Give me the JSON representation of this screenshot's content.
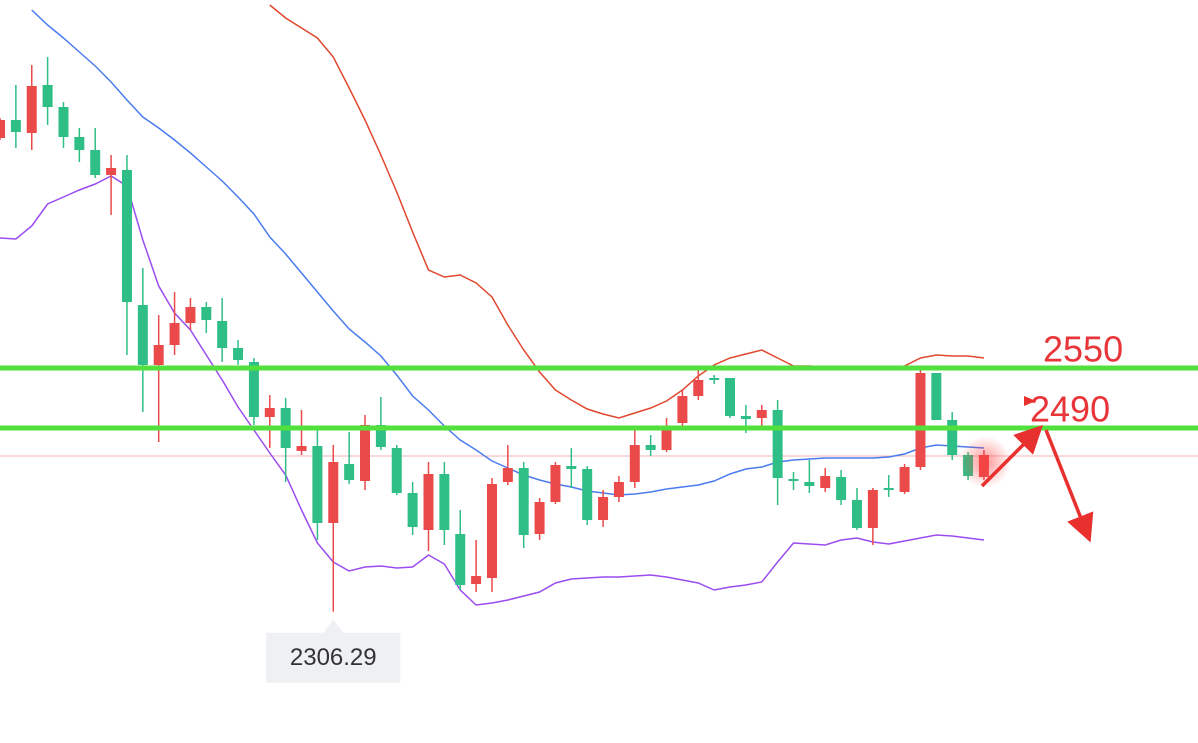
{
  "chart_data": {
    "type": "candlestick",
    "ylim": [
      2175,
      2918
    ],
    "up_color": "#eb4a4a",
    "down_color": "#2fbf86",
    "open": [
      2780,
      2798,
      2785,
      2833,
      2811,
      2781,
      2768,
      2743,
      2748,
      2613,
      2553,
      2573,
      2595,
      2611,
      2597,
      2570,
      2556,
      2501,
      2510,
      2467,
      2472,
      2395,
      2454,
      2437,
      2493,
      2470,
      2425,
      2388,
      2444,
      2384,
      2334,
      2340,
      2436,
      2450,
      2384,
      2416,
      2452,
      2449,
      2398,
      2421,
      2436,
      2473,
      2468,
      2495,
      2522,
      2540,
      2540,
      2502,
      2500,
      2508,
      2439,
      2436,
      2430,
      2441,
      2418,
      2390,
      2430,
      2426,
      2451,
      2545,
      2498,
      2463,
      2441
    ],
    "high": [
      2800,
      2833,
      2853,
      2861,
      2816,
      2790,
      2790,
      2763,
      2763,
      2650,
      2603,
      2626,
      2620,
      2616,
      2620,
      2578,
      2560,
      2523,
      2520,
      2508,
      2488,
      2473,
      2486,
      2503,
      2521,
      2473,
      2436,
      2456,
      2456,
      2408,
      2378,
      2440,
      2473,
      2456,
      2420,
      2456,
      2470,
      2452,
      2428,
      2442,
      2488,
      2483,
      2500,
      2528,
      2548,
      2543,
      2540,
      2513,
      2513,
      2518,
      2446,
      2458,
      2450,
      2448,
      2430,
      2430,
      2443,
      2454,
      2550,
      2545,
      2506,
      2466,
      2468
    ],
    "low": [
      2778,
      2770,
      2768,
      2793,
      2770,
      2756,
      2740,
      2703,
      2563,
      2506,
      2476,
      2563,
      2588,
      2585,
      2556,
      2553,
      2493,
      2470,
      2436,
      2463,
      2378,
      2306.29,
      2434,
      2428,
      2468,
      2423,
      2383,
      2367,
      2373,
      2328,
      2326,
      2326,
      2433,
      2370,
      2378,
      2414,
      2430,
      2393,
      2391,
      2416,
      2430,
      2462,
      2466,
      2488,
      2518,
      2534,
      2500,
      2485,
      2488,
      2413,
      2428,
      2425,
      2426,
      2413,
      2388,
      2373,
      2421,
      2424,
      2448,
      2498,
      2458,
      2438,
      2438
    ],
    "close": [
      2798,
      2786,
      2832,
      2811,
      2781,
      2768,
      2743,
      2750,
      2616,
      2553,
      2573,
      2595,
      2611,
      2598,
      2570,
      2558,
      2501,
      2510,
      2470,
      2472,
      2395,
      2456,
      2438,
      2493,
      2471,
      2425,
      2391,
      2444,
      2388,
      2333,
      2342,
      2434,
      2450,
      2383,
      2416,
      2453,
      2449,
      2398,
      2421,
      2436,
      2473,
      2468,
      2491,
      2522,
      2538,
      2538,
      2502,
      2499,
      2508,
      2440,
      2437,
      2432,
      2442,
      2418,
      2390,
      2428,
      2428,
      2451,
      2545,
      2498,
      2463,
      2442,
      2463
    ],
    "overlays": [
      {
        "color": "#4a7cf0",
        "values": [
          null,
          null,
          2908,
          2893,
          2880,
          2866,
          2852,
          2836,
          2818,
          2801,
          2790,
          2778,
          2765,
          2751,
          2737,
          2721,
          2704,
          2681,
          2664,
          2645,
          2626,
          2607,
          2589,
          2576,
          2562,
          2543,
          2522,
          2508,
          2492,
          2478,
          2468,
          2457,
          2450,
          2443,
          2438,
          2434,
          2431,
          2427,
          2425,
          2423,
          2424,
          2426,
          2429,
          2431,
          2433,
          2437,
          2444,
          2449,
          2451,
          2456,
          2458,
          2459,
          2460,
          2460,
          2460,
          2460,
          2461,
          2464,
          2470,
          2473,
          2472,
          2471,
          2470
        ]
      },
      {
        "color": "#e0482e",
        "values": [
          null,
          null,
          null,
          null,
          null,
          null,
          null,
          null,
          null,
          null,
          null,
          null,
          null,
          null,
          null,
          null,
          null,
          2913,
          2900,
          2890,
          2880,
          2861,
          2830,
          2798,
          2763,
          2726,
          2686,
          2648,
          2641,
          2643,
          2635,
          2621,
          2593,
          2568,
          2546,
          2528,
          2518,
          2509,
          2504,
          2500,
          2505,
          2510,
          2517,
          2528,
          2542,
          2553,
          2560,
          2564,
          2568,
          2560,
          2552,
          2552,
          2551,
          2549,
          2551,
          2551,
          2550,
          2552,
          2560,
          2563,
          2562,
          2562,
          2560
        ]
      },
      {
        "color": "#9b4cf0",
        "values": [
          2680,
          2679,
          2692,
          2714,
          2721,
          2728,
          2734,
          2742,
          2732,
          2678,
          2632,
          2605,
          2588,
          2563,
          2538,
          2511,
          2488,
          2465,
          2443,
          2408,
          2375,
          2356,
          2347,
          2351,
          2352,
          2350,
          2351,
          2363,
          2354,
          2328,
          2313,
          2315,
          2318,
          2322,
          2326,
          2335,
          2339,
          2340,
          2341,
          2341,
          2342,
          2343,
          2341,
          2338,
          2335,
          2328,
          2331,
          2333,
          2336,
          2356,
          2375,
          2374,
          2373,
          2378,
          2380,
          2376,
          2374,
          2377,
          2380,
          2383,
          2382,
          2380,
          2378
        ]
      }
    ],
    "levels": [
      2550,
      2490
    ],
    "level_color": "#52e03c",
    "price_line": 2462,
    "price_line_color": "#f2b3b3"
  }
}
